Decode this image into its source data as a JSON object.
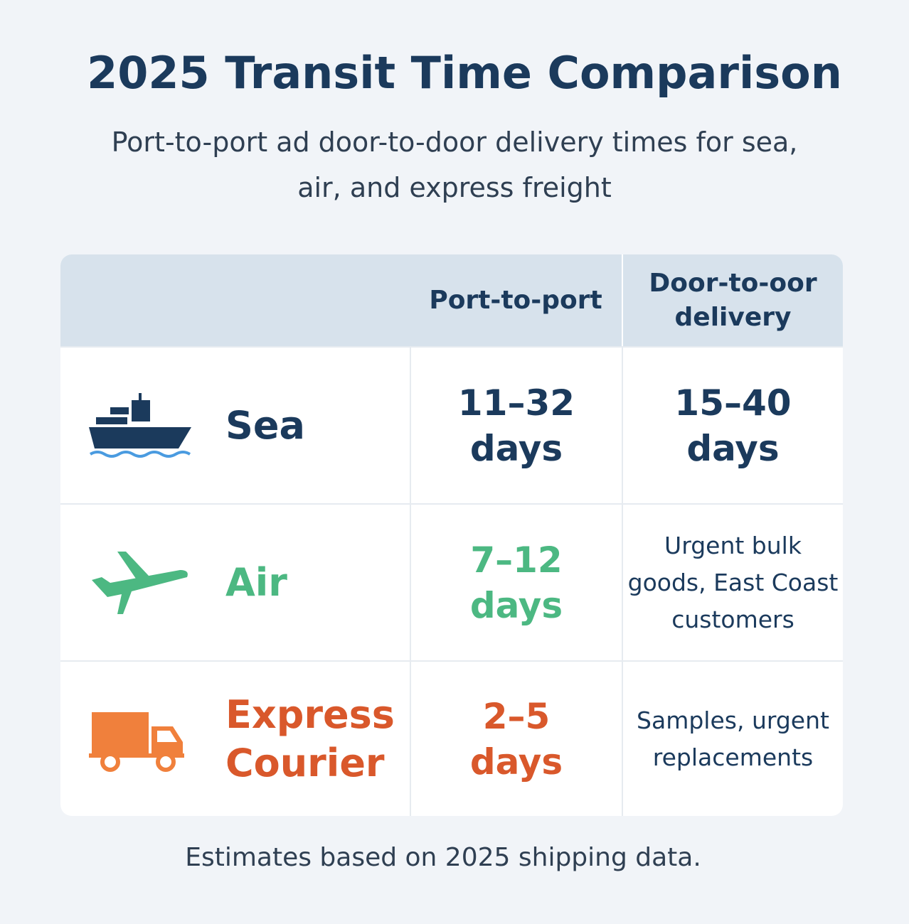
{
  "header": {
    "title": "2025 Transit Time Comparison",
    "subtitle": "Port-to-port ad door-to-door delivery times for sea, air, and express freight"
  },
  "table": {
    "columns": [
      "Port-to-port",
      "Door-to-oor delivery"
    ],
    "rows": [
      {
        "mode": "Sea",
        "port": "11–32 days",
        "door": "15–40 days"
      },
      {
        "mode": "Air",
        "port": "7–12 days",
        "door": "Urgent bulk goods, East Coast customers"
      },
      {
        "mode": "Express Courier",
        "port": "2–5 days",
        "door": "Samples, urgent replacements"
      }
    ]
  },
  "footer": "Estimates based on 2025 shipping data."
}
